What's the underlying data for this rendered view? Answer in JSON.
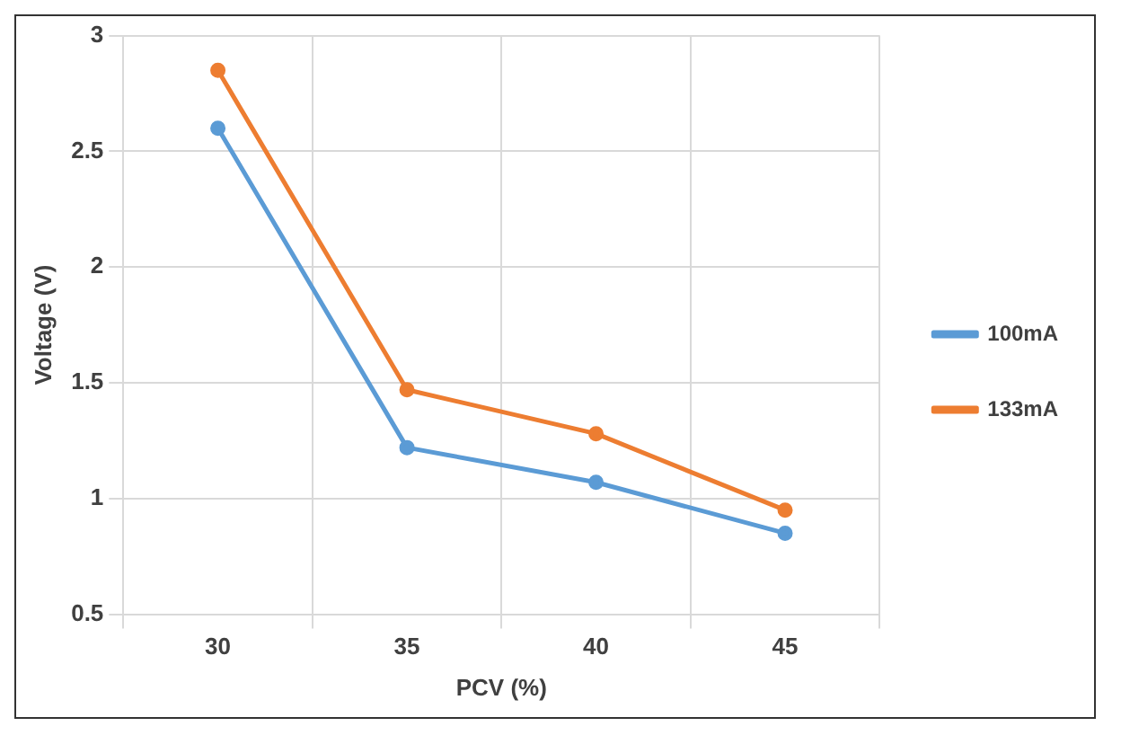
{
  "chart_data": {
    "type": "line",
    "xlabel": "PCV (%)",
    "ylabel": "Voltage (V)",
    "categories": [
      "30",
      "35",
      "40",
      "45"
    ],
    "series": [
      {
        "name": "100mA",
        "color": "#5b9bd5",
        "values": [
          2.6,
          1.22,
          1.07,
          0.85
        ]
      },
      {
        "name": "133mA",
        "color": "#ed7d31",
        "values": [
          2.85,
          1.47,
          1.28,
          0.95
        ]
      }
    ],
    "ylim": [
      0.5,
      3
    ],
    "yticks": [
      0.5,
      1,
      1.5,
      2,
      2.5,
      3
    ],
    "grid": true,
    "legend": "right",
    "marker": "circle",
    "line_style": "solid"
  }
}
